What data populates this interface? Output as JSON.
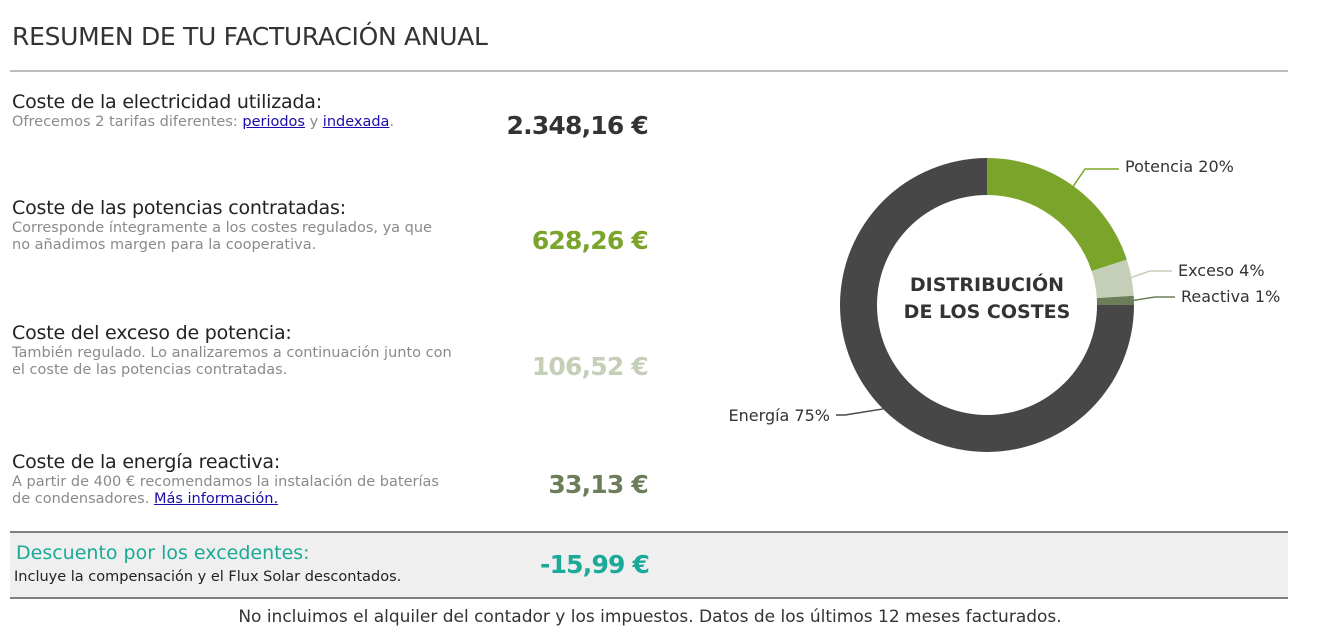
{
  "header": {
    "title": "RESUMEN DE TU FACTURACIÓN ANUAL"
  },
  "costs": {
    "energy": {
      "title": "Coste de la electricidad utilizada:",
      "desc_prefix": "Ofrecemos 2 tarifas diferentes: ",
      "link1": "periodos",
      "desc_mid": " y ",
      "link2": "indexada",
      "desc_suffix": ".",
      "amount": "2.348,16 €"
    },
    "power": {
      "title": "Coste de las potencias contratadas:",
      "desc": "Corresponde íntegramente a los costes regulados, ya que no añadimos margen para la cooperativa.",
      "amount": "628,26 €"
    },
    "excess": {
      "title": "Coste del exceso de potencia:",
      "desc": "También regulado. Lo analizaremos a continuación junto con el coste de las potencias contratadas.",
      "amount": "106,52 €"
    },
    "reactive": {
      "title": "Coste de la energía reactiva:",
      "desc_prefix": "A partir de 400 € recomendamos la instalación de baterías de condensadores. ",
      "link": "Más información.",
      "amount": "33,13 €"
    }
  },
  "discount": {
    "title": "Descuento por los excedentes:",
    "desc": "Incluye la compensación y el Flux Solar descontados.",
    "amount": "-15,99 €"
  },
  "footnote": "No incluimos el alquiler del contador y los impuestos. Datos de los últimos 12 meses facturados.",
  "chart_data": {
    "type": "pie",
    "title_line1": "DISTRIBUCIÓN",
    "title_line2": "DE LOS COSTES",
    "slices": [
      {
        "label": "Potencia 20%",
        "value": 20,
        "color": "#7aa52a"
      },
      {
        "label": "Exceso 4%",
        "value": 4,
        "color": "#c5ceb6"
      },
      {
        "label": "Reactiva 1%",
        "value": 1,
        "color": "#6c7d59"
      },
      {
        "label": "Energía 75%",
        "value": 75,
        "color": "#474747"
      }
    ]
  }
}
